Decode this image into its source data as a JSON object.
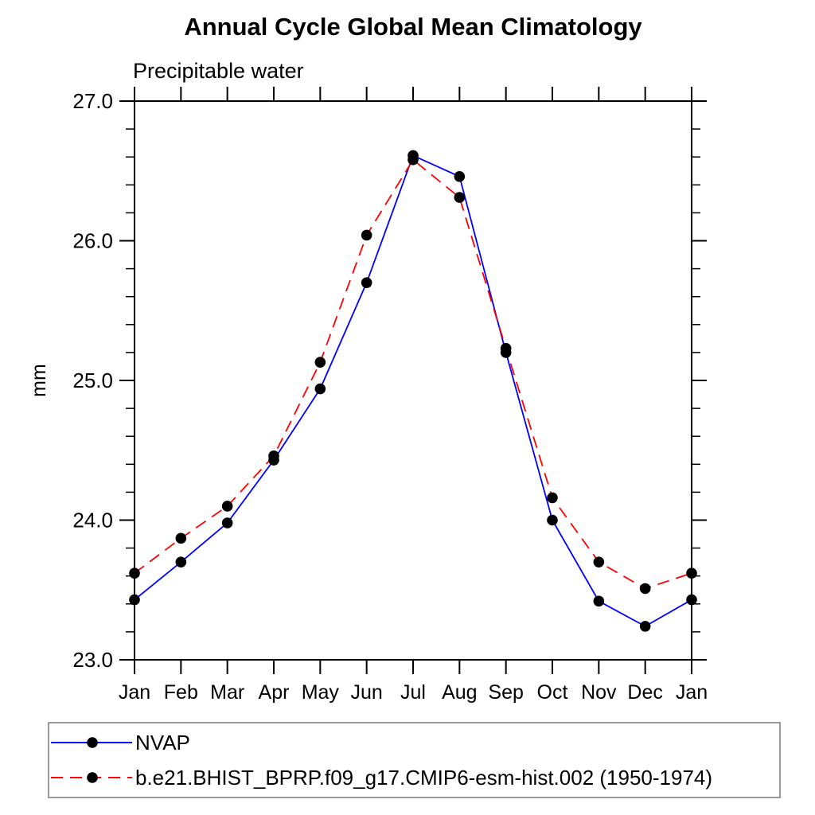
{
  "chart_data": {
    "type": "line",
    "title": "Annual Cycle Global Mean Climatology",
    "subtitle": "Precipitable water",
    "ylabel": "mm",
    "xlabel": "",
    "categories": [
      "Jan",
      "Feb",
      "Mar",
      "Apr",
      "May",
      "Jun",
      "Jul",
      "Aug",
      "Sep",
      "Oct",
      "Nov",
      "Dec",
      "Jan"
    ],
    "ylim": [
      23.0,
      27.0
    ],
    "ytick_labels": [
      "23.0",
      "24.0",
      "25.0",
      "26.0",
      "27.0"
    ],
    "ytick_step_major": 1.0,
    "ytick_step_minor": 0.2,
    "grid": false,
    "legend_position": "bottom-left",
    "axis_color": "#000000",
    "legend_border_color": "#9a9a9a",
    "marker_color": "#000000",
    "series": [
      {
        "name": "NVAP",
        "line_color": "#0000ff",
        "line_style": "solid",
        "marker": "filled-circle",
        "values": [
          23.43,
          23.7,
          23.98,
          24.43,
          24.94,
          25.7,
          26.61,
          26.46,
          25.2,
          24.0,
          23.42,
          23.24,
          23.43
        ]
      },
      {
        "name": "b.e21.BHIST_BPRP.f09_g17.CMIP6-esm-hist.002 (1950-1974)",
        "line_color": "#ff0000",
        "line_style": "dashed",
        "marker": "filled-circle",
        "values": [
          23.62,
          23.87,
          24.1,
          24.46,
          25.13,
          26.04,
          26.58,
          26.31,
          25.23,
          24.16,
          23.7,
          23.51,
          23.62
        ]
      }
    ]
  }
}
